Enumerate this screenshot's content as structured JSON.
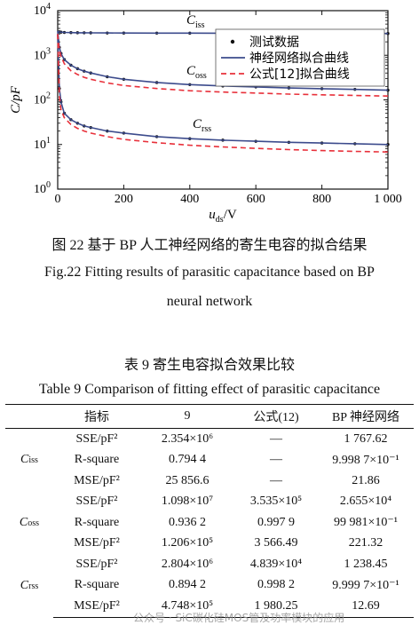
{
  "chart_data": {
    "type": "line",
    "xlabel": "u",
    "xlabel_sub": "ds",
    "xlabel_unit": "/V",
    "ylabel": "C/pF",
    "xlim": [
      0,
      1000
    ],
    "ylim": [
      1,
      10000
    ],
    "y_scale": "log",
    "x_ticks": [
      "0",
      "200",
      "400",
      "600",
      "800",
      "1 000"
    ],
    "x_tick_values": [
      0,
      200,
      400,
      600,
      800,
      1000
    ],
    "y_ticks": [
      {
        "base": "10",
        "exp": "0",
        "value": 1
      },
      {
        "base": "10",
        "exp": "1",
        "value": 10
      },
      {
        "base": "10",
        "exp": "2",
        "value": 100
      },
      {
        "base": "10",
        "exp": "3",
        "value": 1000
      },
      {
        "base": "10",
        "exp": "4",
        "value": 10000
      }
    ],
    "legend": {
      "placement": "top-right",
      "entries": [
        "测试数据",
        "神经网络拟合曲线",
        "公式[12]拟合曲线"
      ]
    },
    "curve_labels": [
      {
        "main": "C",
        "sub": "iss"
      },
      {
        "main": "C",
        "sub": "oss"
      },
      {
        "main": "C",
        "sub": "rss"
      }
    ],
    "colors": {
      "test": "#111111",
      "nn": "#3c4b8c",
      "formula": "#e8303a"
    },
    "series": [
      {
        "curve": "Ciss",
        "kind": "test",
        "x": [
          0,
          5,
          10,
          20,
          40,
          60,
          80,
          100,
          150,
          200,
          300,
          400,
          500,
          600,
          700,
          800,
          900,
          1000
        ],
        "values": [
          3400,
          3350,
          3300,
          3250,
          3220,
          3200,
          3190,
          3180,
          3160,
          3150,
          3140,
          3130,
          3120,
          3110,
          3100,
          3090,
          3085,
          3080
        ]
      },
      {
        "curve": "Ciss",
        "kind": "nn",
        "x": [
          0,
          5,
          10,
          20,
          40,
          60,
          80,
          100,
          150,
          200,
          300,
          400,
          500,
          600,
          700,
          800,
          900,
          1000
        ],
        "values": [
          3400,
          3350,
          3300,
          3250,
          3220,
          3200,
          3190,
          3180,
          3160,
          3150,
          3140,
          3130,
          3120,
          3110,
          3100,
          3090,
          3085,
          3080
        ]
      },
      {
        "curve": "Coss",
        "kind": "test",
        "x": [
          0,
          5,
          10,
          20,
          40,
          60,
          80,
          100,
          150,
          200,
          300,
          400,
          500,
          600,
          700,
          800,
          900,
          1000
        ],
        "values": [
          3500,
          1500,
          1100,
          800,
          600,
          500,
          440,
          400,
          330,
          290,
          245,
          220,
          205,
          195,
          185,
          178,
          172,
          165
        ]
      },
      {
        "curve": "Coss",
        "kind": "nn",
        "x": [
          0,
          5,
          10,
          20,
          40,
          60,
          80,
          100,
          150,
          200,
          300,
          400,
          500,
          600,
          700,
          800,
          900,
          1000
        ],
        "values": [
          3500,
          1500,
          1100,
          800,
          600,
          500,
          440,
          400,
          330,
          290,
          245,
          220,
          205,
          195,
          185,
          178,
          172,
          165
        ]
      },
      {
        "curve": "Coss",
        "kind": "formula",
        "x": [
          0,
          5,
          10,
          20,
          40,
          60,
          80,
          100,
          150,
          200,
          300,
          400,
          500,
          600,
          700,
          800,
          900,
          1000
        ],
        "values": [
          3000,
          1300,
          950,
          650,
          450,
          370,
          320,
          290,
          240,
          210,
          180,
          160,
          150,
          142,
          135,
          130,
          126,
          122
        ]
      },
      {
        "curve": "Crss",
        "kind": "test",
        "x": [
          0,
          5,
          10,
          20,
          40,
          60,
          80,
          100,
          150,
          200,
          300,
          400,
          500,
          600,
          700,
          800,
          900,
          1000
        ],
        "values": [
          3000,
          180,
          90,
          50,
          36,
          30,
          26,
          24,
          20,
          18,
          15,
          13.5,
          12.5,
          11.8,
          11.2,
          10.8,
          10.4,
          10
        ]
      },
      {
        "curve": "Crss",
        "kind": "nn",
        "x": [
          0,
          5,
          10,
          20,
          40,
          60,
          80,
          100,
          150,
          200,
          300,
          400,
          500,
          600,
          700,
          800,
          900,
          1000
        ],
        "values": [
          3000,
          180,
          90,
          50,
          36,
          30,
          26,
          24,
          20,
          18,
          15,
          13.5,
          12.5,
          11.8,
          11.2,
          10.8,
          10.4,
          10
        ]
      },
      {
        "curve": "Crss",
        "kind": "formula",
        "x": [
          0,
          5,
          10,
          20,
          40,
          60,
          80,
          100,
          150,
          200,
          300,
          400,
          500,
          600,
          700,
          800,
          900,
          1000
        ],
        "values": [
          3000,
          120,
          60,
          40,
          28,
          23,
          20,
          18,
          15,
          13,
          11,
          9.6,
          8.8,
          8.2,
          7.7,
          7.3,
          7.0,
          6.8
        ]
      }
    ]
  },
  "figure_caption": {
    "cn": "图 22   基于 BP 人工神经网络的寄生电容的拟合结果",
    "en_line1": "Fig.22    Fitting results of parasitic capacitance based on BP",
    "en_line2": "neural network"
  },
  "table_caption": {
    "cn": "表 9   寄生电容拟合效果比较",
    "en": "Table 9    Comparison of fitting effect of parasitic capacitance"
  },
  "table": {
    "headers": [
      "",
      "指标",
      "9",
      "公式(12)",
      "BP 神经网络"
    ],
    "groups": [
      {
        "main": "C",
        "sub": "iss",
        "rows": [
          [
            "SSE/pF²",
            "2.354×10⁶",
            "—",
            "1 767.62"
          ],
          [
            "R-square",
            "0.794 4",
            "—",
            "9.998 7×10⁻¹"
          ],
          [
            "MSE/pF²",
            "25 856.6",
            "—",
            "21.86"
          ]
        ]
      },
      {
        "main": "C",
        "sub": "oss",
        "rows": [
          [
            "SSE/pF²",
            "1.098×10⁷",
            "3.535×10⁵",
            "2.655×10⁴"
          ],
          [
            "R-square",
            "0.936 2",
            "0.997 9",
            "99 981×10⁻¹"
          ],
          [
            "MSE/pF²",
            "1.206×10⁵",
            "3 566.49",
            "221.32"
          ]
        ]
      },
      {
        "main": "C",
        "sub": "rss",
        "rows": [
          [
            "SSE/pF²",
            "2.804×10⁶",
            "4.839×10⁴",
            "1 238.45"
          ],
          [
            "R-square",
            "0.894 2",
            "0.998 2",
            "9.999 7×10⁻¹"
          ],
          [
            "MSE/pF²",
            "4.748×10⁵",
            "1 980.25",
            "12.69"
          ]
        ]
      }
    ]
  },
  "watermark": "公众号 · SiC碳化硅MOS管及功率模块的应用"
}
